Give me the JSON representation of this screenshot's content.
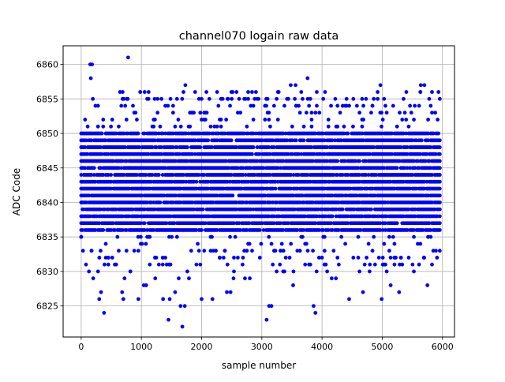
{
  "chart_data": {
    "type": "scatter",
    "title": "channel070 logain raw data",
    "xlabel": "sample number",
    "ylabel": "ADC Code",
    "xlim": [
      -300,
      6200
    ],
    "ylim": [
      6820.5,
      6862.7
    ],
    "xticks": [
      0,
      1000,
      2000,
      3000,
      4000,
      5000,
      6000
    ],
    "yticks": [
      6825,
      6830,
      6835,
      6840,
      6845,
      6850,
      6855,
      6860
    ],
    "grid": true,
    "legend": "none",
    "marker_color": "#0000ff",
    "n_samples": 6000,
    "y_range_observed": [
      6822,
      6861
    ],
    "y_median": 6843,
    "dense_band": [
      6836,
      6850
    ],
    "series": [
      {
        "points": [
          [
            150,
            6860
          ],
          [
            180,
            6860
          ],
          [
            780,
            6861
          ],
          [
            160,
            6858
          ],
          [
            3760,
            6858
          ],
          [
            1730,
            6857
          ],
          [
            3480,
            6857
          ],
          [
            3560,
            6857
          ],
          [
            4970,
            6857
          ],
          [
            5640,
            6857
          ],
          [
            5700,
            6857
          ],
          [
            980,
            6856
          ],
          [
            1120,
            6856
          ],
          [
            2080,
            6856
          ],
          [
            3280,
            6856
          ],
          [
            4050,
            6856
          ],
          [
            5400,
            6856
          ],
          [
            760,
            6855
          ],
          [
            1220,
            6855
          ],
          [
            2350,
            6855
          ],
          [
            2440,
            6855
          ],
          [
            2500,
            6855
          ],
          [
            4220,
            6855
          ],
          [
            4520,
            6855
          ],
          [
            4730,
            6855
          ],
          [
            5780,
            6855
          ],
          [
            5540,
            6854
          ],
          [
            5880,
            6853
          ],
          [
            5920,
            6852
          ],
          [
            1560,
            6851
          ],
          [
            200,
            6829
          ],
          [
            80,
            6831
          ],
          [
            280,
            6830
          ],
          [
            300,
            6826
          ],
          [
            330,
            6827
          ],
          [
            380,
            6824
          ],
          [
            680,
            6827
          ],
          [
            700,
            6826
          ],
          [
            720,
            6829
          ],
          [
            950,
            6826
          ],
          [
            1040,
            6828
          ],
          [
            1080,
            6828
          ],
          [
            1230,
            6829
          ],
          [
            1360,
            6826
          ],
          [
            1420,
            6831
          ],
          [
            1450,
            6823
          ],
          [
            1470,
            6826
          ],
          [
            1560,
            6827
          ],
          [
            1620,
            6829
          ],
          [
            1650,
            6825
          ],
          [
            1680,
            6822
          ],
          [
            1720,
            6825
          ],
          [
            1790,
            6829
          ],
          [
            2000,
            6826
          ],
          [
            2180,
            6826
          ],
          [
            2420,
            6827
          ],
          [
            2480,
            6827
          ],
          [
            2530,
            6829
          ],
          [
            2680,
            6831
          ],
          [
            2720,
            6829
          ],
          [
            2800,
            6829
          ],
          [
            3080,
            6823
          ],
          [
            3120,
            6825
          ],
          [
            3160,
            6825
          ],
          [
            3300,
            6831
          ],
          [
            3520,
            6828
          ],
          [
            3860,
            6825
          ],
          [
            3890,
            6824
          ],
          [
            3910,
            6830
          ],
          [
            3950,
            6832
          ],
          [
            4040,
            6831
          ],
          [
            4160,
            6829
          ],
          [
            4230,
            6829
          ],
          [
            4450,
            6826
          ],
          [
            4520,
            6832
          ],
          [
            4680,
            6827
          ],
          [
            4740,
            6832
          ],
          [
            4790,
            6830
          ],
          [
            4990,
            6826
          ],
          [
            5140,
            6828
          ],
          [
            5280,
            6827
          ],
          [
            5690,
            6832
          ],
          [
            5750,
            6828
          ],
          [
            5910,
            6832
          ],
          [
            0,
            6835
          ],
          [
            0,
            6848
          ],
          [
            30,
            6833
          ],
          [
            3360,
            6833
          ],
          [
            2150,
            6833
          ],
          [
            950,
            6833
          ]
        ],
        "dense_columns_x_range": [
          0,
          5960
        ],
        "dense_columns_step": 21.5,
        "dense_columns_y": [
          6836,
          6850
        ]
      }
    ]
  }
}
